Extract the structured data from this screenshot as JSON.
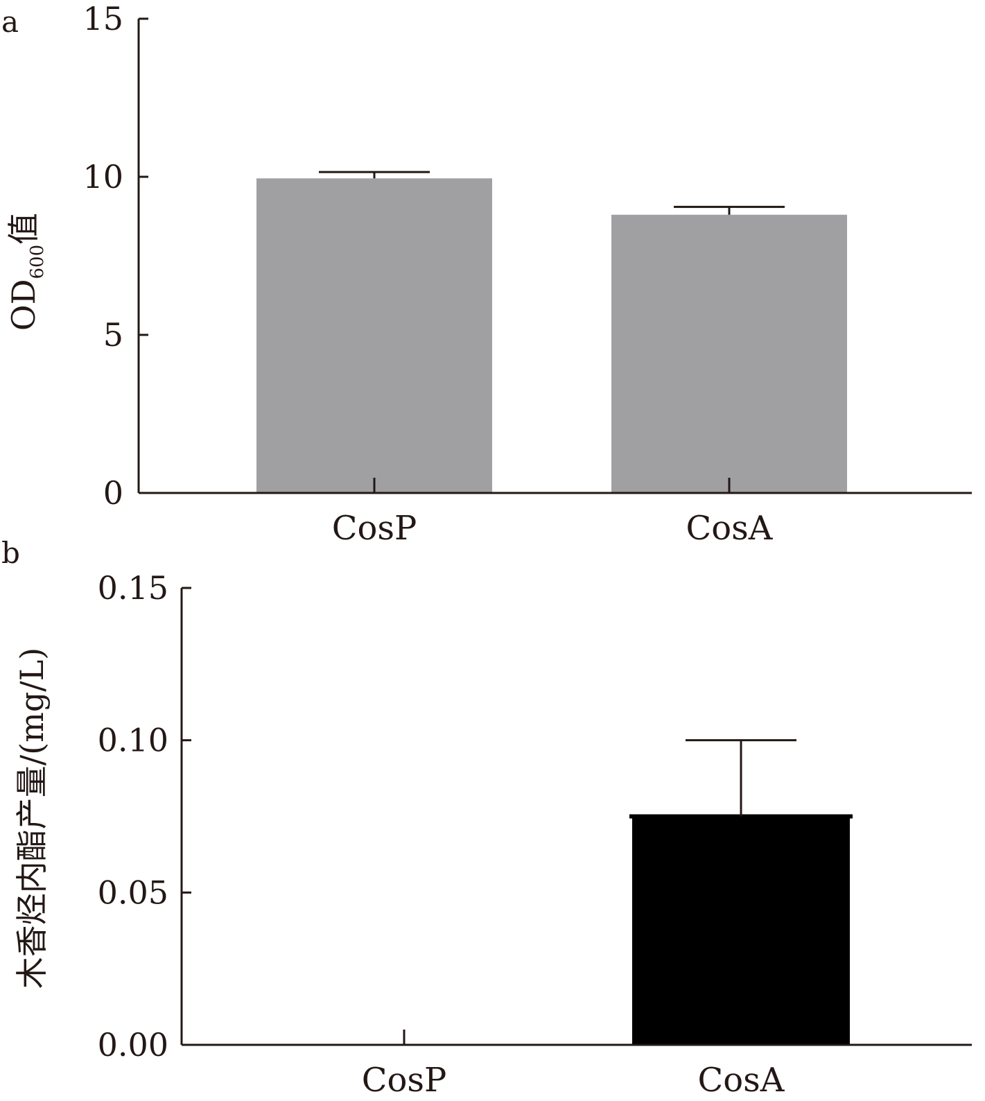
{
  "chart_data": [
    {
      "type": "bar",
      "panel_label": "a",
      "categories": [
        "CosP",
        "CosA"
      ],
      "values": [
        9.95,
        8.8
      ],
      "error": [
        0.2,
        0.25
      ],
      "ylabel_main": "OD",
      "ylabel_sub": "600",
      "ylabel_suffix": "值",
      "ylim": [
        0,
        15
      ],
      "yticks": [
        0,
        5,
        10,
        15
      ],
      "ytick_labels": [
        "0",
        "5",
        "10",
        "15"
      ],
      "bar_color": "#a0a0a3",
      "grid": false
    },
    {
      "type": "bar",
      "panel_label": "b",
      "categories": [
        "CosP",
        "CosA"
      ],
      "values": [
        0,
        0.075
      ],
      "error": [
        0,
        0.025
      ],
      "ylabel": "木香烃内酯产量/(mg/L)",
      "ylim": [
        0,
        0.15
      ],
      "yticks": [
        0,
        0.05,
        0.1,
        0.15
      ],
      "ytick_labels": [
        "0.00",
        "0.05",
        "0.10",
        "0.15"
      ],
      "bar_color": "#000000",
      "grid": false
    }
  ]
}
